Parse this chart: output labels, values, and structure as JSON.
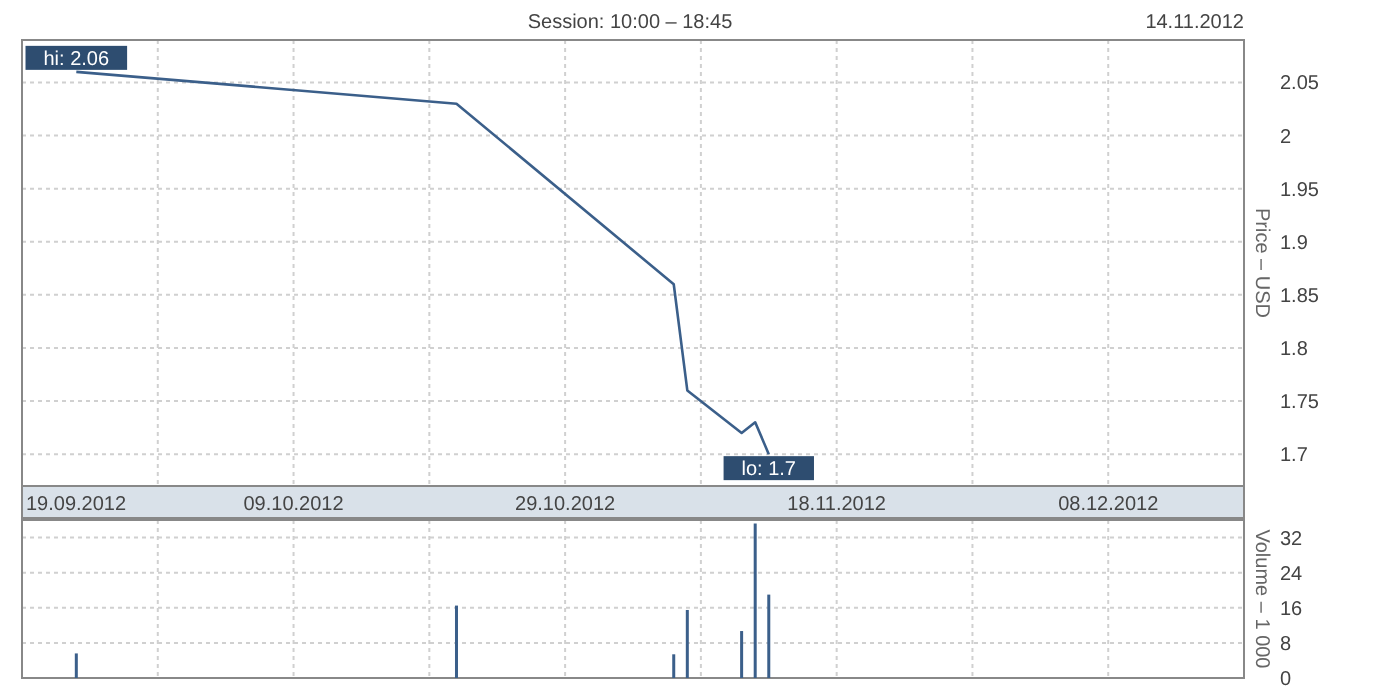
{
  "chart_data": [
    {
      "type": "line",
      "title": "Session: 10:00 – 18:45",
      "subtitle": "14.11.2012",
      "ylabel": "Price – USD",
      "x": [
        "2012-09-23",
        "2012-10-21",
        "2012-11-06",
        "2012-11-07",
        "2012-11-11",
        "2012-11-12",
        "2012-11-13"
      ],
      "series": [
        {
          "color": "#3b5f8a",
          "values": [
            2.06,
            2.03,
            1.86,
            1.76,
            1.72,
            1.73,
            1.7
          ]
        }
      ],
      "xlim": [
        "2012-09-19",
        "2012-12-18"
      ],
      "xticks": [
        {
          "value": "2012-09-19",
          "label": "19.09.2012"
        },
        {
          "value": "2012-09-29",
          "label": null
        },
        {
          "value": "2012-10-09",
          "label": "09.10.2012"
        },
        {
          "value": "2012-10-19",
          "label": null
        },
        {
          "value": "2012-10-29",
          "label": "29.10.2012"
        },
        {
          "value": "2012-11-08",
          "label": null
        },
        {
          "value": "2012-11-18",
          "label": "18.11.2012"
        },
        {
          "value": "2012-11-28",
          "label": null
        },
        {
          "value": "2012-12-08",
          "label": "08.12.2012"
        }
      ],
      "ylim": [
        1.67,
        2.09
      ],
      "yticks": [
        1.7,
        1.75,
        1.8,
        1.85,
        1.9,
        1.95,
        2,
        2.05
      ],
      "grid": true,
      "annotations": [
        {
          "text": "hi: 2.06",
          "x": "2012-09-23",
          "y": 2.06
        },
        {
          "text": "lo: 1.7",
          "x": "2012-11-13",
          "y": 1.7
        }
      ]
    },
    {
      "type": "bar",
      "ylabel": "Volume – 1 000",
      "x": [
        "2012-09-23",
        "2012-10-21",
        "2012-11-06",
        "2012-11-07",
        "2012-11-11",
        "2012-11-12",
        "2012-11-13"
      ],
      "series": [
        {
          "color": "#3b5f8a",
          "values": [
            5.6,
            16.5,
            5.4,
            15.5,
            10.7,
            35.2,
            19
          ]
        }
      ],
      "xlim": [
        "2012-09-19",
        "2012-12-18"
      ],
      "xticks": [
        {
          "value": "2012-09-19",
          "label": null
        },
        {
          "value": "2012-09-29",
          "label": null
        },
        {
          "value": "2012-10-09",
          "label": null
        },
        {
          "value": "2012-10-19",
          "label": null
        },
        {
          "value": "2012-10-29",
          "label": null
        },
        {
          "value": "2012-11-08",
          "label": null
        },
        {
          "value": "2012-11-18",
          "label": null
        },
        {
          "value": "2012-11-28",
          "label": null
        },
        {
          "value": "2012-12-08",
          "label": null
        }
      ],
      "ylim": [
        0,
        36
      ],
      "yticks": [
        0,
        8,
        16,
        24,
        32
      ],
      "grid": true,
      "tick_labels": "y"
    }
  ]
}
